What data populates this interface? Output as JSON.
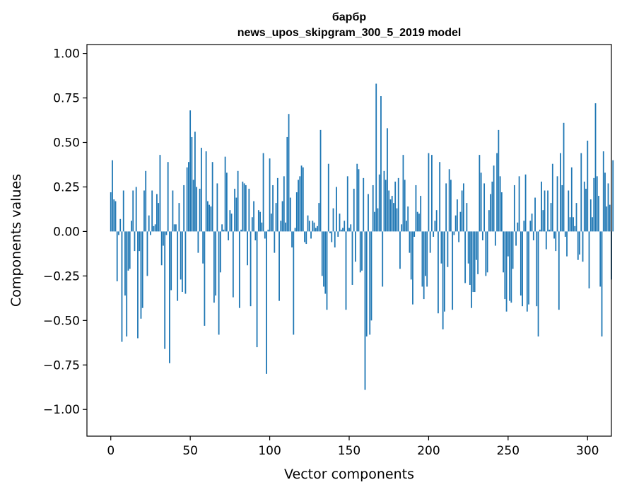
{
  "chart_data": {
    "type": "bar",
    "title": "барбр",
    "subtitle": "news_upos_skipgram_300_5_2019 model",
    "xlabel": "Vector components",
    "ylabel": "Components values",
    "xlim": [
      -15,
      315
    ],
    "ylim": [
      -1.15,
      1.05
    ],
    "xticks": [
      0,
      50,
      100,
      150,
      200,
      250,
      300
    ],
    "xtick_labels": [
      "0",
      "50",
      "100",
      "150",
      "200",
      "250",
      "300"
    ],
    "yticks": [
      1.0,
      0.75,
      0.5,
      0.25,
      0.0,
      -0.25,
      -0.5,
      -0.75,
      -1.0
    ],
    "ytick_labels": [
      "1.00",
      "0.75",
      "0.50",
      "0.25",
      "0.00",
      "−0.25",
      "−0.50",
      "−0.75",
      "−1.00"
    ],
    "bar_color": "#1f77b4",
    "values": [
      0.22,
      0.4,
      0.18,
      0.17,
      -0.28,
      -0.02,
      0.07,
      -0.62,
      0.23,
      -0.36,
      -0.59,
      -0.22,
      -0.21,
      0.06,
      0.23,
      -0.11,
      0.25,
      -0.6,
      -0.11,
      -0.49,
      -0.43,
      0.23,
      0.34,
      -0.25,
      0.09,
      -0.02,
      0.23,
      0.03,
      0.04,
      0.21,
      0.16,
      0.43,
      -0.19,
      -0.08,
      -0.66,
      -0.02,
      0.39,
      -0.74,
      -0.33,
      0.23,
      0.04,
      0.04,
      -0.39,
      0.16,
      -0.27,
      -0.34,
      0.26,
      -0.35,
      0.36,
      0.39,
      0.68,
      0.53,
      0.29,
      0.56,
      0.25,
      -0.12,
      0.24,
      0.47,
      -0.18,
      -0.53,
      0.45,
      0.17,
      0.15,
      0.14,
      0.39,
      -0.4,
      -0.36,
      0.27,
      -0.58,
      -0.23,
      0.04,
      0.01,
      0.42,
      0.33,
      -0.05,
      0.12,
      0.1,
      -0.37,
      0.24,
      0.19,
      0.34,
      -0.43,
      0.01,
      0.28,
      0.27,
      0.26,
      -0.19,
      0.24,
      -0.42,
      0.08,
      0.17,
      -0.05,
      -0.65,
      0.12,
      0.11,
      0.05,
      0.44,
      -0.04,
      -0.8,
      0.01,
      0.41,
      0.1,
      0.26,
      -0.12,
      0.16,
      0.3,
      -0.39,
      0.06,
      0.17,
      0.31,
      0.05,
      0.53,
      0.66,
      0.19,
      -0.09,
      -0.58,
      0.02,
      0.22,
      0.29,
      0.31,
      0.37,
      0.36,
      -0.06,
      -0.07,
      0.09,
      0.06,
      -0.04,
      0.06,
      0.05,
      0.02,
      0.03,
      0.16,
      0.57,
      -0.25,
      -0.31,
      -0.35,
      -0.44,
      0.38,
      -0.01,
      -0.06,
      0.13,
      -0.09,
      0.25,
      -0.03,
      0.1,
      0.01,
      0.02,
      0.06,
      -0.44,
      0.31,
      0.02,
      0.04,
      -0.3,
      0.24,
      -0.17,
      0.38,
      0.35,
      -0.23,
      -0.22,
      0.3,
      -0.89,
      -0.59,
      0.21,
      -0.58,
      -0.5,
      0.26,
      0.11,
      0.83,
      0.13,
      0.32,
      0.76,
      -0.31,
      0.34,
      0.29,
      0.58,
      0.23,
      0.18,
      0.2,
      0.16,
      0.28,
      0.13,
      0.3,
      -0.21,
      0.04,
      0.43,
      0.29,
      0.06,
      0.14,
      -0.12,
      -0.27,
      -0.41,
      -0.03,
      0.26,
      0.11,
      0.1,
      0.2,
      -0.31,
      -0.38,
      -0.25,
      -0.31,
      0.44,
      -0.12,
      0.43,
      -0.03,
      0.06,
      0.12,
      -0.46,
      0.39,
      -0.18,
      -0.55,
      -0.45,
      0.27,
      -0.2,
      0.35,
      0.29,
      -0.44,
      -0.02,
      0.09,
      0.18,
      -0.06,
      0.11,
      0.23,
      0.27,
      -0.29,
      0.16,
      -0.18,
      -0.3,
      -0.43,
      -0.34,
      -0.34,
      -0.16,
      -0.24,
      0.43,
      0.33,
      -0.05,
      0.27,
      -0.25,
      -0.23,
      0.12,
      0.21,
      0.28,
      0.37,
      -0.08,
      0.44,
      0.57,
      0.31,
      0.22,
      -0.23,
      -0.38,
      -0.45,
      -0.14,
      -0.39,
      -0.4,
      -0.21,
      0.26,
      -0.08,
      0.05,
      0.31,
      -0.36,
      -0.42,
      0.06,
      0.32,
      -0.45,
      -0.41,
      0.06,
      0.1,
      -0.05,
      0.19,
      -0.42,
      -0.59,
      0.01,
      0.28,
      0.12,
      0.23,
      -0.1,
      0.23,
      0.01,
      0.16,
      0.38,
      -0.04,
      -0.11,
      0.31,
      -0.44,
      0.44,
      0.26,
      0.61,
      -0.03,
      -0.14,
      0.23,
      0.08,
      0.36,
      0.08,
      0.03,
      0.16,
      -0.16,
      -0.13,
      0.44,
      -0.17,
      0.28,
      0.24,
      0.51,
      -0.32,
      0.18,
      0.08,
      0.3,
      0.72,
      0.31,
      0.2,
      -0.31,
      -0.59,
      0.45,
      0.33,
      0.14,
      0.27,
      0.15,
      -0.27,
      0.4
    ]
  }
}
